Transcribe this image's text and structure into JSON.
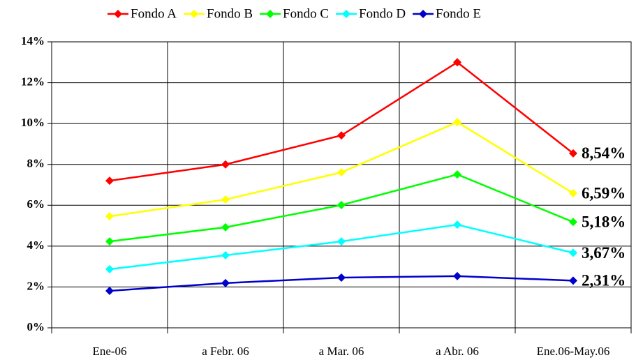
{
  "chart_data": {
    "type": "line",
    "categories": [
      "Ene-06",
      "a Febr. 06",
      "a Mar. 06",
      "a Abr. 06",
      "Ene.06-May.06"
    ],
    "series": [
      {
        "name": "Fondo A",
        "color": "#ff0000",
        "values": [
          7.2,
          8.0,
          9.42,
          13.0,
          8.54
        ],
        "value_labels": [
          null,
          null,
          null,
          null,
          "8,54%"
        ]
      },
      {
        "name": "Fondo B",
        "color": "#ffff00",
        "values": [
          5.46,
          6.28,
          7.61,
          10.07,
          6.59
        ],
        "value_labels": [
          null,
          null,
          null,
          null,
          "6,59%"
        ]
      },
      {
        "name": "Fondo C",
        "color": "#00ff00",
        "values": [
          4.23,
          4.92,
          6.01,
          7.51,
          5.18
        ],
        "value_labels": [
          null,
          null,
          null,
          null,
          "5,18%"
        ]
      },
      {
        "name": "Fondo D",
        "color": "#00ffff",
        "values": [
          2.87,
          3.55,
          4.23,
          5.05,
          3.67
        ],
        "value_labels": [
          null,
          null,
          null,
          null,
          "3,67%"
        ]
      },
      {
        "name": "Fondo E",
        "color": "#0000cc",
        "values": [
          1.81,
          2.19,
          2.46,
          2.53,
          2.31
        ],
        "value_labels": [
          null,
          null,
          null,
          null,
          "2,31%"
        ]
      }
    ],
    "ylim": [
      0,
      14
    ],
    "yticks": [
      {
        "value": 0,
        "label": "0%"
      },
      {
        "value": 2,
        "label": "2%"
      },
      {
        "value": 4,
        "label": "4%"
      },
      {
        "value": 6,
        "label": "6%"
      },
      {
        "value": 8,
        "label": "8%"
      },
      {
        "value": 10,
        "label": "10%"
      },
      {
        "value": 12,
        "label": "12%"
      },
      {
        "value": 14,
        "label": "14%"
      }
    ],
    "grid": true,
    "legend": "top"
  }
}
